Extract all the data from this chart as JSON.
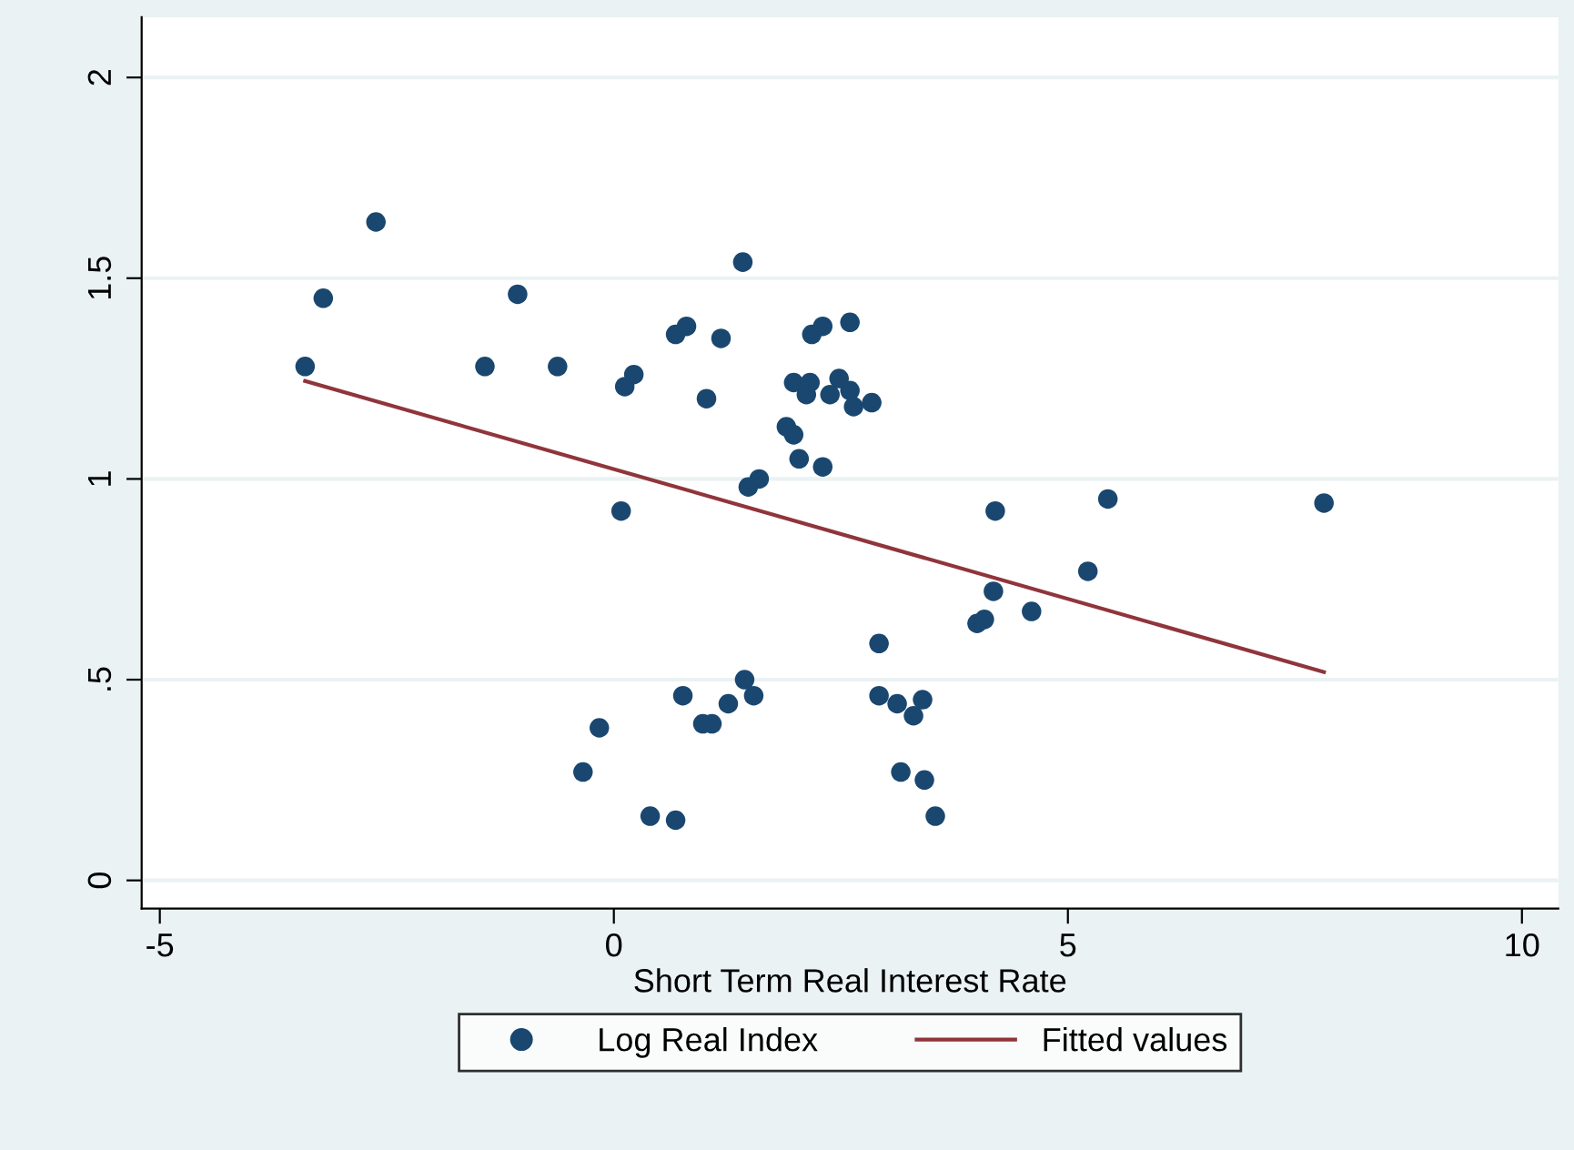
{
  "chart_data": {
    "type": "scatter",
    "xlabel": "Short Term Real Interest Rate",
    "xlim": [
      -5.2,
      10.4
    ],
    "xticks": [
      -5,
      0,
      5,
      10
    ],
    "ylim": [
      -0.07,
      2.15
    ],
    "yticks": [
      0,
      {
        "value": 0.5,
        "label": ".5"
      },
      1,
      1.5,
      2
    ],
    "grid": "y",
    "legend": "bottom",
    "series": [
      {
        "name": "Log Real Index",
        "marker": "circle",
        "color": "#1a476f",
        "x": [
          -3.4,
          -3.2,
          -2.62,
          -1.42,
          -1.06,
          -0.62,
          0.12,
          0.22,
          0.08,
          0.68,
          0.8,
          1.18,
          1.02,
          1.42,
          1.48,
          1.6,
          1.9,
          1.98,
          2.04,
          2.3,
          1.98,
          2.16,
          2.12,
          2.18,
          2.3,
          2.6,
          2.48,
          2.38,
          2.6,
          2.64,
          2.84,
          4.2,
          5.44,
          7.82,
          5.22,
          4.18,
          4.6,
          4.0,
          4.08,
          2.92,
          0.76,
          1.44,
          1.54,
          1.26,
          0.98,
          1.08,
          2.92,
          3.12,
          3.3,
          3.4,
          3.16,
          3.42,
          3.54,
          -0.16,
          -0.34,
          0.4,
          0.68
        ],
        "values": [
          1.28,
          1.45,
          1.64,
          1.28,
          1.46,
          1.28,
          1.23,
          1.26,
          0.92,
          1.36,
          1.38,
          1.35,
          1.2,
          1.54,
          0.98,
          1.0,
          1.13,
          1.11,
          1.05,
          1.03,
          1.24,
          1.24,
          1.21,
          1.36,
          1.38,
          1.39,
          1.25,
          1.21,
          1.22,
          1.18,
          1.19,
          0.92,
          0.95,
          0.94,
          0.77,
          0.72,
          0.67,
          0.64,
          0.65,
          0.59,
          0.46,
          0.5,
          0.46,
          0.44,
          0.39,
          0.39,
          0.46,
          0.44,
          0.41,
          0.45,
          0.27,
          0.25,
          0.16,
          0.38,
          0.27,
          0.16,
          0.15
        ]
      },
      {
        "name": "Fitted values",
        "type": "line",
        "color": "#90353b",
        "x": [
          -3.4,
          7.82
        ],
        "values": [
          1.244,
          0.519
        ]
      }
    ]
  }
}
